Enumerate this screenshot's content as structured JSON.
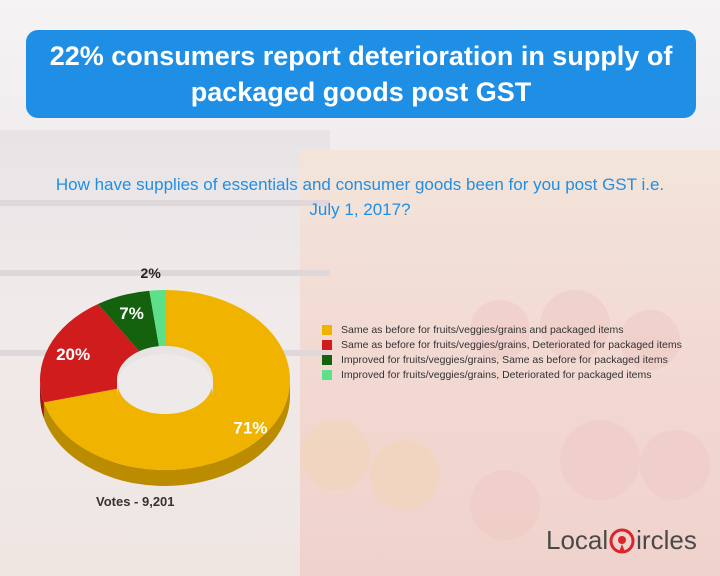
{
  "title": "22% consumers report deterioration in supply of packaged goods post GST",
  "question": "How have supplies of essentials and consumer goods been for you post GST i.e. July 1, 2017?",
  "votes": "Votes - 9,201",
  "logo": {
    "part1": "Local",
    "part2": "ircles"
  },
  "colors": {
    "title_bg": "#1f8fe6",
    "question_text": "#1f8fe6",
    "logo_red": "#d8262c"
  },
  "chart_data": {
    "type": "pie",
    "style": "3d-donut",
    "title": "",
    "labels": [
      "Same as before for fruits/veggies/grains and packaged items",
      "Same as before for fruits/veggies/grains, Deteriorated for packaged items",
      "Improved for fruits/veggies/grains, Same as before for packaged items",
      "Improved for fruits/veggies/grains, Deteriorated for packaged items"
    ],
    "values": [
      71,
      20,
      7,
      2
    ],
    "value_labels": [
      "71%",
      "20%",
      "7%",
      "2%"
    ],
    "colors": [
      "#f0b400",
      "#d01c1c",
      "#14620e",
      "#5ee08a"
    ],
    "legend_position": "right"
  }
}
